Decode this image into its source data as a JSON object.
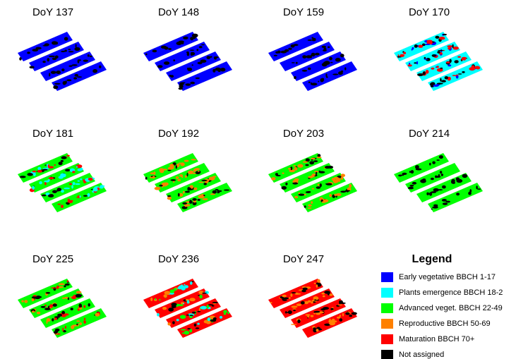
{
  "panels": [
    {
      "label": "DoY 137"
    },
    {
      "label": "DoY 148"
    },
    {
      "label": "DoY 159"
    },
    {
      "label": "DoY 170"
    },
    {
      "label": "DoY 181"
    },
    {
      "label": "DoY 192"
    },
    {
      "label": "DoY 203"
    },
    {
      "label": "DoY 214"
    },
    {
      "label": "DoY 225"
    },
    {
      "label": "DoY 236"
    },
    {
      "label": "DoY 247"
    }
  ],
  "legend": {
    "title": "Legend",
    "items": [
      {
        "label": "Early vegetative BBCH 1-17",
        "color": "#0000ff"
      },
      {
        "label": "Plants emergence BBCH 18-2",
        "color": "#00ffff"
      },
      {
        "label": "Advanced veget. BBCH 22-49",
        "color": "#00ff00"
      },
      {
        "label": "Reproductive BBCH 50-69",
        "color": "#ff8000"
      },
      {
        "label": "Maturation BBCH 70+",
        "color": "#ff0000"
      },
      {
        "label": "Not assigned",
        "color": "#000000"
      }
    ]
  }
}
